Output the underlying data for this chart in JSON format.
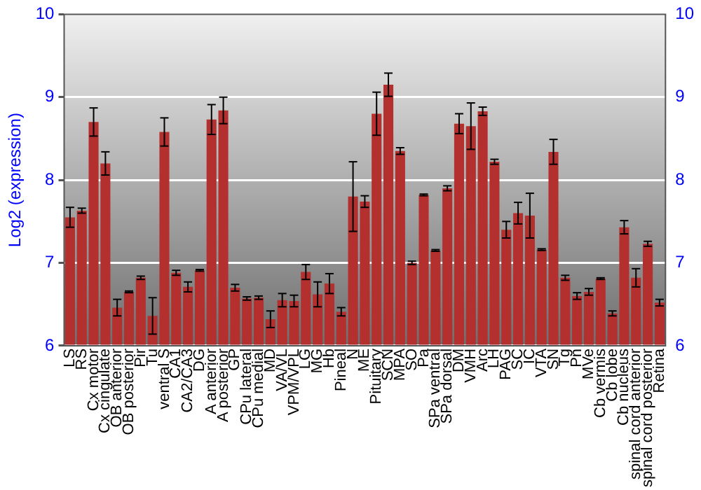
{
  "chart_data": {
    "type": "bar",
    "ylabel": "Log2 (expression)",
    "categories": [
      "LS",
      "RS",
      "Cx motor",
      "Cx cingulate",
      "OB anterior",
      "OB posterior",
      "Pir",
      "Tu",
      "ventral S",
      "CA1",
      "CA2/CA3",
      "DG",
      "A anterior",
      "A posterior",
      "GP",
      "CPu lateral",
      "CPu medial",
      "MD",
      "VA/VL",
      "VPM/VPL",
      "LG",
      "MG",
      "Hb",
      "Pineal",
      "N",
      "ME",
      "Pituitary",
      "SCN",
      "MPA",
      "SO",
      "Pa",
      "SPa ventral",
      "SPa dorsal",
      "DM",
      "VMH",
      "Arc",
      "LH",
      "PAG",
      "SC",
      "IC",
      "VTA",
      "SN",
      "Tg",
      "Pn",
      "MVe",
      "Cb vermis",
      "Cb lobe",
      "Cb nucleus",
      "spinal cord anterior",
      "spinal cord posterior",
      "Retina"
    ],
    "values": [
      7.55,
      7.63,
      8.7,
      8.2,
      6.46,
      6.65,
      6.82,
      6.36,
      8.58,
      6.88,
      6.71,
      6.91,
      8.73,
      8.84,
      6.7,
      6.57,
      6.58,
      6.32,
      6.55,
      6.54,
      6.89,
      6.62,
      6.75,
      6.41,
      7.8,
      7.74,
      8.8,
      9.15,
      8.35,
      7.0,
      7.82,
      7.15,
      7.9,
      8.68,
      8.65,
      8.83,
      8.22,
      7.4,
      7.6,
      7.57,
      7.16,
      8.34,
      6.82,
      6.6,
      6.65,
      6.81,
      6.39,
      7.43,
      6.82,
      7.23,
      6.52
    ],
    "errors": [
      0.12,
      0.03,
      0.17,
      0.14,
      0.1,
      0.01,
      0.02,
      0.22,
      0.17,
      0.03,
      0.06,
      0.01,
      0.18,
      0.16,
      0.04,
      0.02,
      0.02,
      0.1,
      0.08,
      0.07,
      0.09,
      0.15,
      0.12,
      0.05,
      0.42,
      0.07,
      0.26,
      0.14,
      0.04,
      0.02,
      0.01,
      0.01,
      0.03,
      0.12,
      0.28,
      0.05,
      0.03,
      0.1,
      0.13,
      0.27,
      0.01,
      0.15,
      0.03,
      0.04,
      0.04,
      0.01,
      0.03,
      0.08,
      0.11,
      0.03,
      0.04
    ],
    "color": "#b3302f",
    "ylim": [
      6,
      10
    ],
    "yticks": [
      6,
      7,
      8,
      9,
      10
    ],
    "y2lim": [
      6,
      10
    ],
    "y2ticks": [
      6,
      7,
      8,
      9,
      10
    ],
    "grid": "y",
    "legend": false
  }
}
